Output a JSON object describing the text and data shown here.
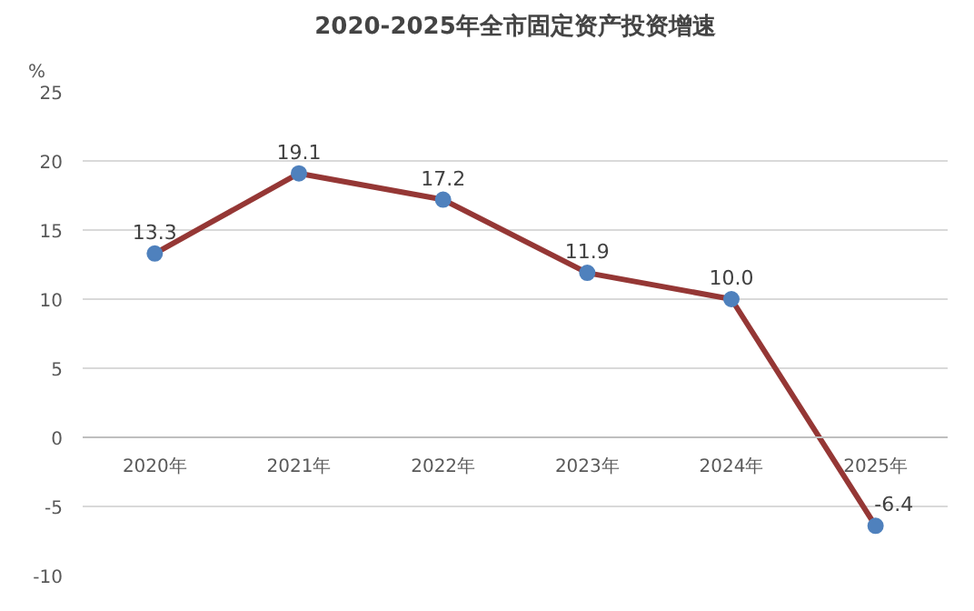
{
  "chart_data": {
    "type": "line",
    "title": "2020-2025年全市固定资产投资增速",
    "ylabel": "%",
    "categories": [
      "2020年",
      "2021年",
      "2022年",
      "2023年",
      "2024年",
      "2025年"
    ],
    "series": [
      {
        "color": "#953735",
        "values": [
          13.3,
          19.1,
          17.2,
          11.9,
          10.0,
          -6.4
        ]
      }
    ],
    "value_labels": [
      "13.3",
      "19.1",
      "17.2",
      "11.9",
      "10.0",
      "-6.4"
    ],
    "marker": "circle",
    "line_style": "solid",
    "grid": "y",
    "ylim": [
      -10,
      25
    ],
    "yticks": [
      -10,
      {
        "value": -5,
        "label": "-5"
      },
      0,
      5,
      10,
      15,
      20,
      25
    ]
  }
}
